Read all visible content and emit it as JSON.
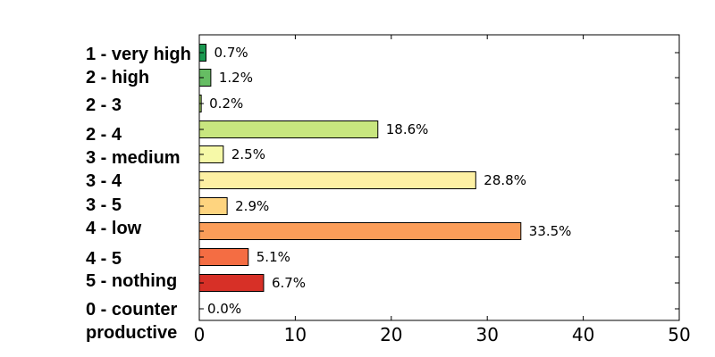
{
  "chart_data": {
    "type": "bar",
    "orientation": "horizontal",
    "title": "",
    "xlabel": "",
    "ylabel": "",
    "xlim": [
      0,
      50
    ],
    "xticks": [
      0,
      10,
      20,
      30,
      40,
      50
    ],
    "grid": false,
    "legend": "none",
    "value_suffix": "%",
    "categories": [
      "1 - very high",
      "2 - high",
      "2 - 3",
      "2 - 4",
      "3 - medium",
      "3 - 4",
      "3 - 5",
      "4 - low",
      "4 - 5",
      "5 - nothing",
      "0 - counter productive"
    ],
    "category_lines": [
      [
        "1 - very high"
      ],
      [
        "2 - high"
      ],
      [
        "2 - 3"
      ],
      [
        "2 - 4"
      ],
      [
        "3 - medium"
      ],
      [
        "3 - 4"
      ],
      [
        "3 - 5"
      ],
      [
        "4 - low"
      ],
      [
        "4 - 5"
      ],
      [
        "5 - nothing"
      ],
      [
        "0 - counter",
        "productive"
      ]
    ],
    "values": [
      0.7,
      1.2,
      0.2,
      18.6,
      2.5,
      28.8,
      2.9,
      33.5,
      5.1,
      6.7,
      0.0
    ],
    "value_labels": [
      "0.7%",
      "1.2%",
      "0.2%",
      "18.6%",
      "2.5%",
      "28.8%",
      "2.9%",
      "33.5%",
      "5.1%",
      "6.7%",
      "0.0%"
    ],
    "colors": [
      "#1a9850",
      "#66bd63",
      "#a6d96a",
      "#c8e67f",
      "#f6f9a8",
      "#fdf0a3",
      "#fed47f",
      "#fb9d59",
      "#f46d43",
      "#d73027",
      "#a50026"
    ]
  }
}
